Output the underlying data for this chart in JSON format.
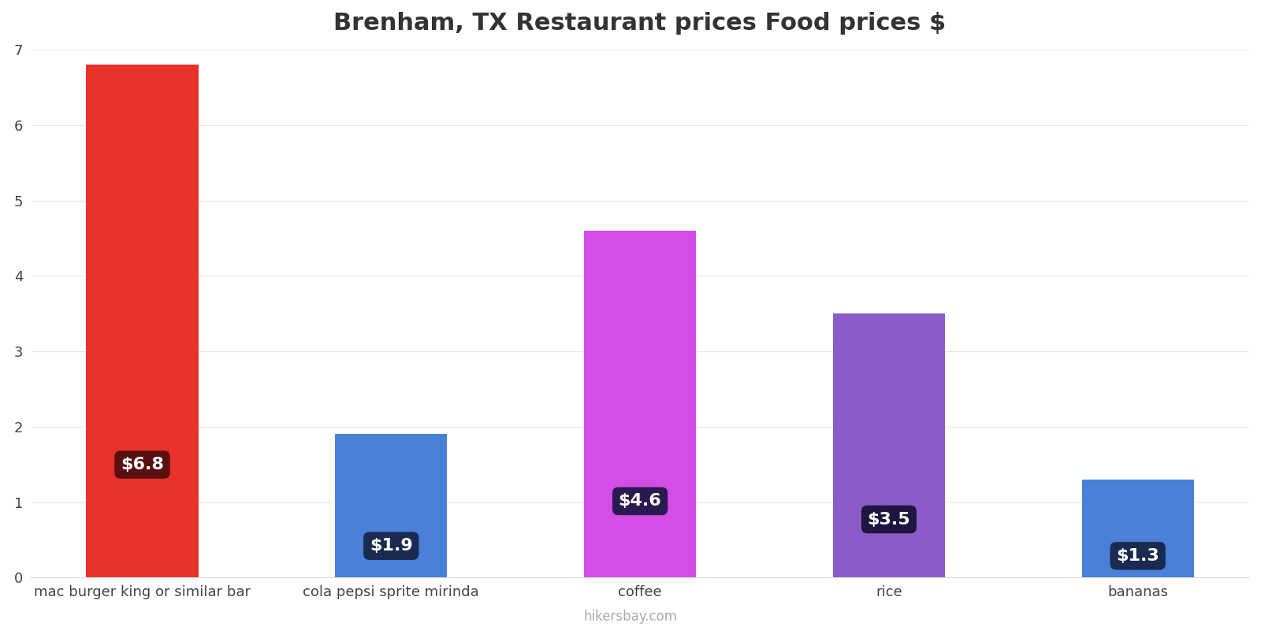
{
  "title": "Brenham, TX Restaurant prices Food prices $",
  "categories": [
    "mac burger king or similar bar",
    "cola pepsi sprite mirinda",
    "coffee",
    "rice",
    "bananas"
  ],
  "values": [
    6.8,
    1.9,
    4.6,
    3.5,
    1.3
  ],
  "bar_colors": [
    "#e8322a",
    "#4a80d8",
    "#d44de8",
    "#8b5cc8",
    "#4a80d8"
  ],
  "label_bg_colors": [
    "#5a1010",
    "#1a2a50",
    "#2a1a50",
    "#1e1540",
    "#1a2a50"
  ],
  "labels": [
    "$6.8",
    "$1.9",
    "$4.6",
    "$3.5",
    "$1.3"
  ],
  "ylim": [
    0,
    7
  ],
  "yticks": [
    0,
    1,
    2,
    3,
    4,
    5,
    6,
    7
  ],
  "title_fontsize": 22,
  "tick_fontsize": 13,
  "label_fontsize": 16,
  "watermark": "hikersbay.com",
  "background_color": "#ffffff",
  "grid_color": "#e8e8e8"
}
